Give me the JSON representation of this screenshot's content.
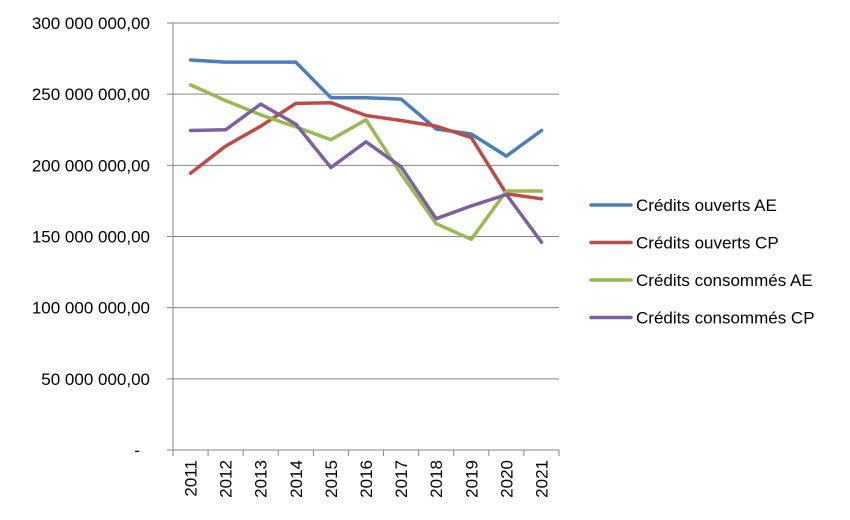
{
  "chart_data": {
    "type": "line",
    "title": "",
    "xlabel": "",
    "ylabel": "",
    "ylim": [
      0,
      300000000
    ],
    "grid": "horizontal",
    "legend_position": "right",
    "y_ticks": [
      {
        "value": 0,
        "label": "-"
      },
      {
        "value": 50000000,
        "label": "50 000 000,00"
      },
      {
        "value": 100000000,
        "label": "100 000 000,00"
      },
      {
        "value": 150000000,
        "label": "150 000 000,00"
      },
      {
        "value": 200000000,
        "label": "200 000 000,00"
      },
      {
        "value": 250000000,
        "label": "250 000 000,00"
      },
      {
        "value": 300000000,
        "label": "300 000 000,00"
      }
    ],
    "categories": [
      "2011",
      "2012",
      "2013",
      "2014",
      "2015",
      "2016",
      "2017",
      "2018",
      "2019",
      "2020",
      "2021"
    ],
    "series": [
      {
        "name": "Crédits ouverts AE",
        "color": "#4A7EBB",
        "values": [
          274000000,
          272500000,
          272500000,
          272500000,
          247500000,
          247500000,
          246500000,
          225500000,
          222000000,
          206500000,
          224500000
        ]
      },
      {
        "name": "Crédits ouverts CP",
        "color": "#BE4B48",
        "values": [
          194500000,
          213500000,
          227500000,
          243500000,
          244000000,
          235000000,
          231500000,
          227500000,
          219500000,
          180000000,
          176500000
        ]
      },
      {
        "name": "Crédits consommés AE",
        "color": "#98B954",
        "values": [
          256500000,
          245500000,
          235500000,
          227000000,
          218000000,
          232000000,
          194000000,
          159000000,
          148000000,
          182000000,
          182000000
        ]
      },
      {
        "name": "Crédits consommés CP",
        "color": "#7D60A0",
        "values": [
          224500000,
          225000000,
          243000000,
          229000000,
          198500000,
          216500000,
          199000000,
          162500000,
          171500000,
          179500000,
          146000000
        ]
      }
    ]
  }
}
